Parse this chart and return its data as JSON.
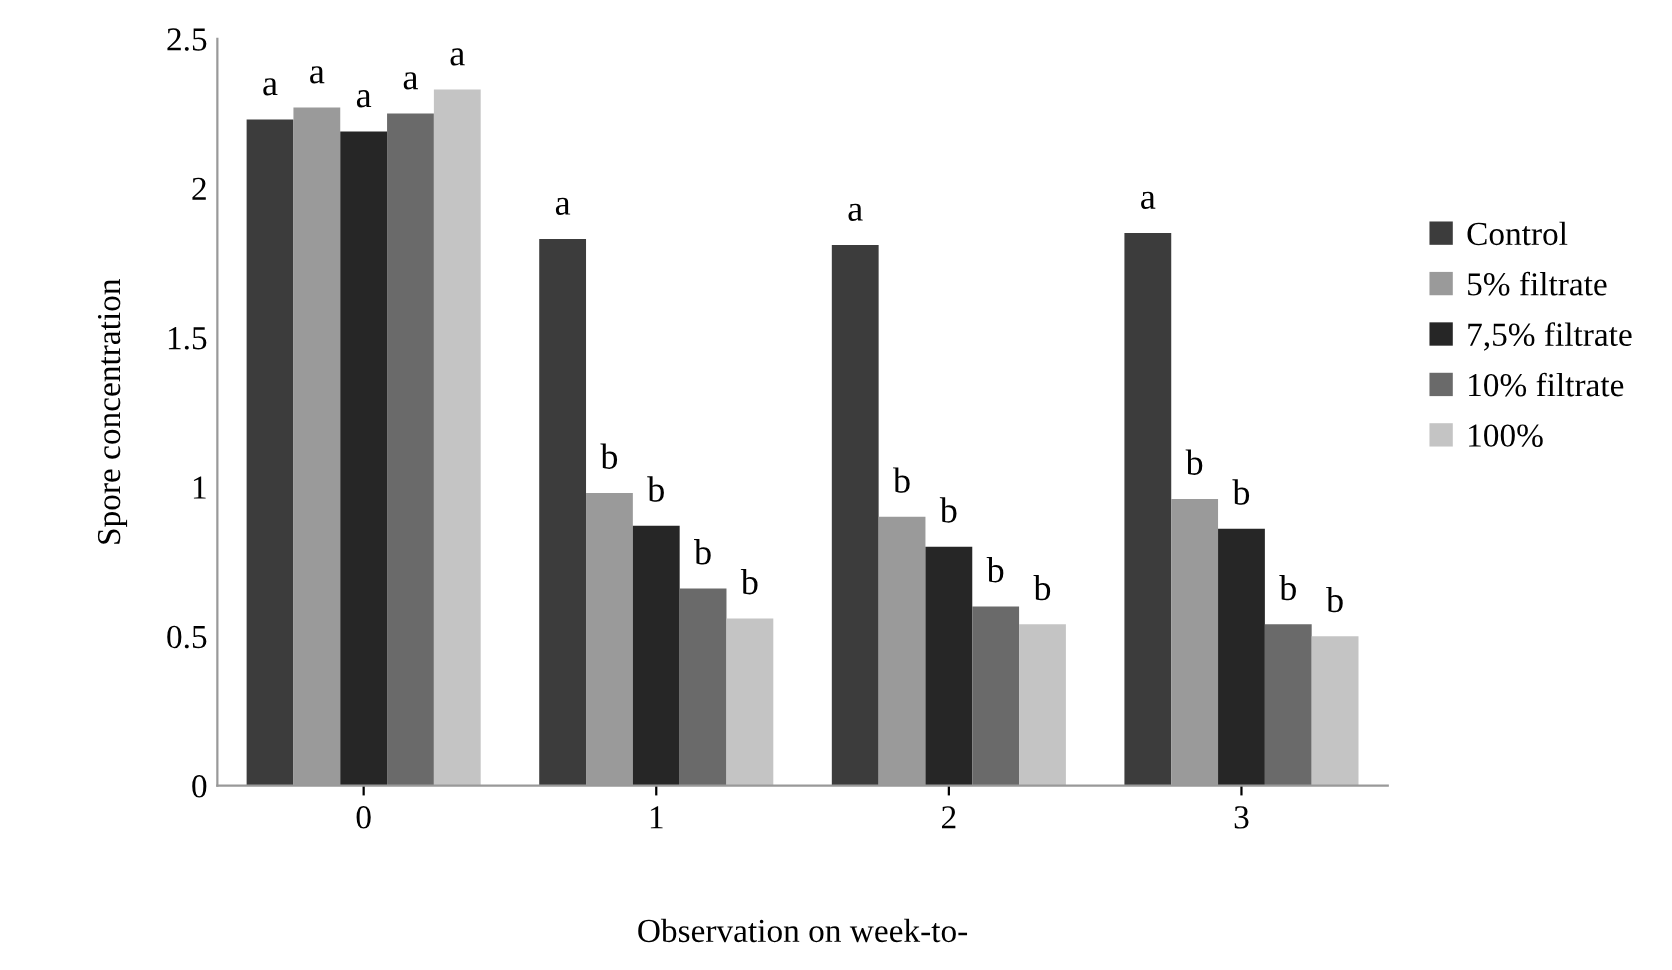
{
  "chart_data": {
    "type": "bar",
    "xlabel": "Observation on week-to-",
    "ylabel": "Spore concentration",
    "categories": [
      "0",
      "1",
      "2",
      "3"
    ],
    "ylim": [
      0,
      2.5
    ],
    "yticks": [
      0,
      0.5,
      1,
      1.5,
      2,
      2.5
    ],
    "grid": false,
    "legend": "right",
    "series": [
      {
        "name": "Control",
        "color": "#3c3c3c",
        "values": [
          2.23,
          1.83,
          1.81,
          1.85
        ],
        "value_labels": [
          "a",
          "a",
          "a",
          "a"
        ]
      },
      {
        "name": "5% filtrate",
        "color": "#9a9a9a",
        "values": [
          2.27,
          0.98,
          0.9,
          0.96
        ],
        "value_labels": [
          "a",
          "b",
          "b",
          "b"
        ]
      },
      {
        "name": "7,5% filtrate",
        "color": "#262626",
        "values": [
          2.19,
          0.87,
          0.8,
          0.86
        ],
        "value_labels": [
          "a",
          "b",
          "b",
          "b"
        ]
      },
      {
        "name": "10% filtrate",
        "color": "#6a6a6a",
        "values": [
          2.25,
          0.66,
          0.6,
          0.54
        ],
        "value_labels": [
          "a",
          "b",
          "b",
          "b"
        ]
      },
      {
        "name": "100%",
        "color": "#c4c4c4",
        "values": [
          2.33,
          0.56,
          0.54,
          0.5
        ],
        "value_labels": [
          "a",
          "b",
          "b",
          "b"
        ]
      }
    ]
  }
}
